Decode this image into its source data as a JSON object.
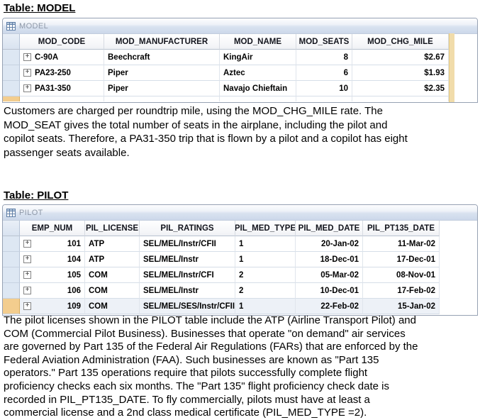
{
  "colors": {
    "selector_blue": "#dde7f3",
    "selected_selector_tan": "#f3cd8e",
    "right_strip_tan": "#f1dcaa",
    "titlebar_text_gray": "#8d97a7",
    "selected_row_bg": "#edf1f7"
  },
  "model_section": {
    "title": "Table: MODEL",
    "window_title": "MODEL",
    "datasheet_icon": "table-grid-icon",
    "expand_glyph": "+",
    "columns": [
      "MOD_CODE",
      "MOD_MANUFACTURER",
      "MOD_NAME",
      "MOD_SEATS",
      "MOD_CHG_MILE"
    ],
    "rows": [
      [
        "C-90A",
        "Beechcraft",
        "KingAir",
        "8",
        "$2.67"
      ],
      [
        "PA23-250",
        "Piper",
        "Aztec",
        "6",
        "$1.93"
      ],
      [
        "PA31-350",
        "Piper",
        "Navajo Chieftain",
        "10",
        "$2.35"
      ]
    ],
    "paragraph_lines": [
      "Customers are charged per roundtrip mile, using the MOD_CHG_MILE rate. The",
      "MOD_SEAT gives the total number of seats in the airplane, including the pilot and",
      "copilot seats. Therefore, a PA31-350 trip that is flown by a pilot and a copilot has eight",
      "passenger seats available."
    ]
  },
  "pilot_section": {
    "title": "Table: PILOT",
    "window_title": "PILOT",
    "datasheet_icon": "table-grid-icon",
    "expand_glyph": "+",
    "columns": [
      "EMP_NUM",
      "PIL_LICENSE",
      "PIL_RATINGS",
      "PIL_MED_TYPE",
      "PIL_MED_DATE",
      "PIL_PT135_DATE"
    ],
    "rows": [
      [
        "101",
        "ATP",
        "SEL/MEL/Instr/CFII",
        "1",
        "20-Jan-02",
        "11-Mar-02"
      ],
      [
        "104",
        "ATP",
        "SEL/MEL/Instr",
        "1",
        "18-Dec-01",
        "17-Dec-01"
      ],
      [
        "105",
        "COM",
        "SEL/MEL/Instr/CFI",
        "2",
        "05-Mar-02",
        "08-Nov-01"
      ],
      [
        "106",
        "COM",
        "SEL/MEL/Instr",
        "2",
        "10-Dec-01",
        "17-Feb-02"
      ],
      [
        "109",
        "COM",
        "SEL/MEL/SES/Instr/CFII",
        "1",
        "22-Feb-02",
        "15-Jan-02"
      ]
    ],
    "selected_row_index": 4,
    "paragraph_lines": [
      "The pilot licenses shown in the PILOT table include the ATP (Airline Transport Pilot) and",
      "COM (Commercial Pilot Business). Businesses that operate \"on demand\" air services",
      "are governed by Part 135 of the Federal Air Regulations (FARs) that are enforced by the",
      "Federal Aviation Administration (FAA). Such businesses are known as \"Part 135",
      "operators.\" Part 135 operations require that pilots successfully complete flight",
      "proficiency checks each six months. The \"Part 135\" flight proficiency check date is",
      "recorded in PIL_PT135_DATE. To fly commercially, pilots must have at least a",
      "commercial license and a 2nd class medical certificate (PIL_MED_TYPE =2)."
    ]
  }
}
